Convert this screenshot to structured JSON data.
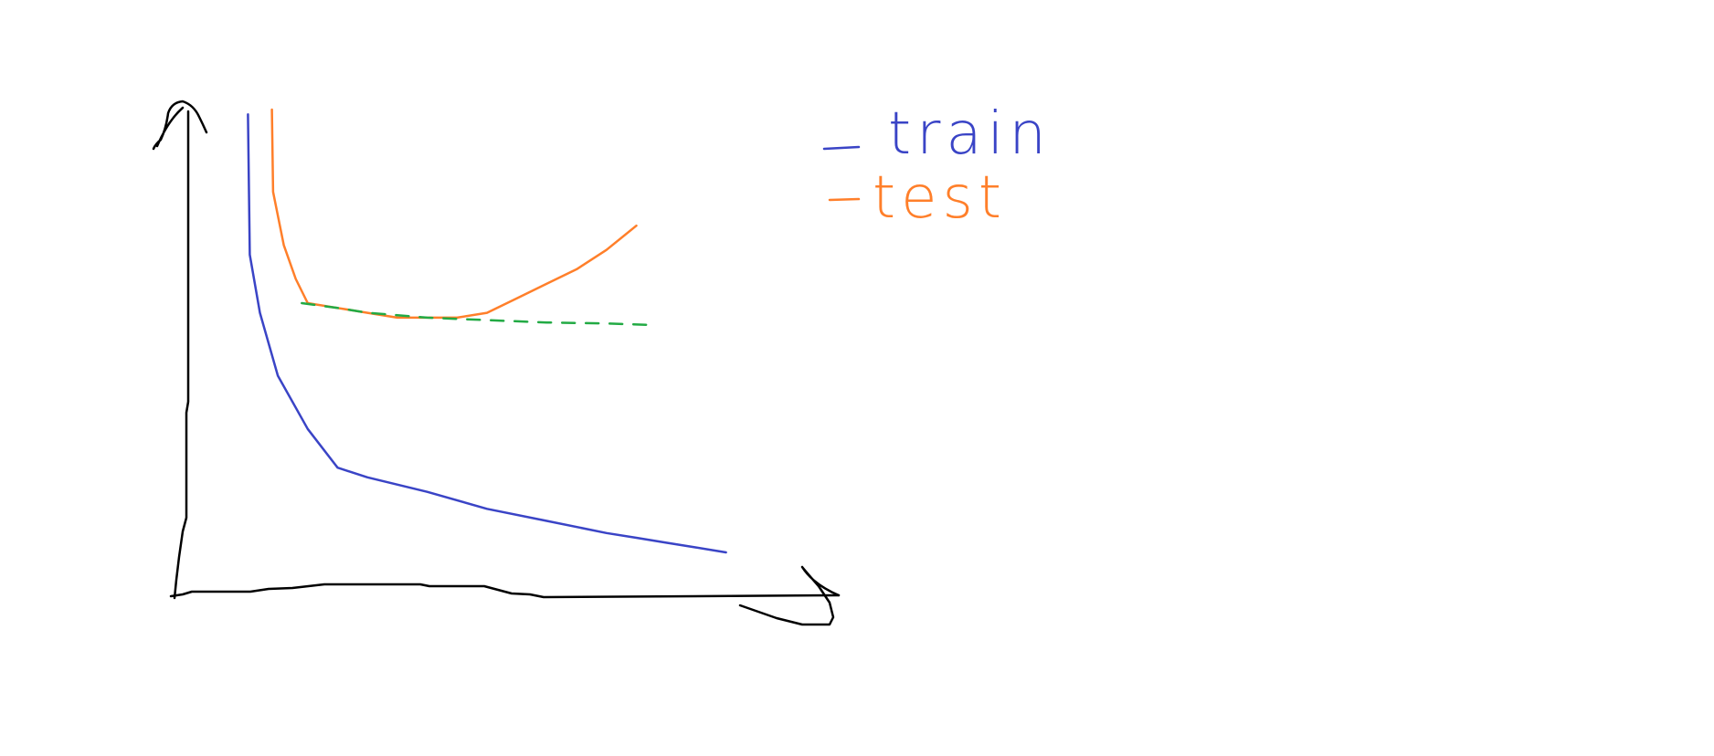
{
  "chart_data": {
    "type": "line",
    "title": "",
    "xlabel": "",
    "ylabel": "",
    "grid": false,
    "legend_position": "top-right",
    "xlim": [
      0,
      100
    ],
    "ylim": [
      0,
      100
    ],
    "colors": {
      "axes": "#000000",
      "train": "#3a44c6",
      "test": "#ff7f2a",
      "reference": "#22aa44"
    },
    "series": [
      {
        "name": "train",
        "color": "#3a44c6",
        "style": "solid",
        "x": [
          10,
          10.3,
          12,
          15,
          20,
          25,
          30,
          40,
          50,
          60,
          70,
          75,
          80,
          85,
          90
        ],
        "y": [
          99,
          70,
          58,
          45,
          34,
          26,
          24,
          21,
          17.5,
          15,
          12.5,
          11.5,
          10.5,
          9.5,
          8.5
        ]
      },
      {
        "name": "test",
        "color": "#ff7f2a",
        "style": "solid",
        "x": [
          14,
          14.2,
          16,
          18,
          20,
          25,
          30,
          35,
          40,
          45,
          50,
          55,
          60,
          65,
          70,
          75
        ],
        "y": [
          100,
          83,
          72,
          65,
          60,
          59,
          58,
          57,
          57,
          57,
          58,
          61,
          64,
          67,
          71,
          76
        ]
      },
      {
        "name": "",
        "color": "#22aa44",
        "style": "dashed",
        "x": [
          19,
          25,
          30,
          40,
          50,
          60,
          70,
          77
        ],
        "y": [
          60,
          59,
          58,
          57,
          56.5,
          56,
          55.8,
          55.5
        ]
      }
    ],
    "legend": [
      {
        "label": "train",
        "color": "#3a44c6"
      },
      {
        "label": "test",
        "color": "#ff7f2a"
      }
    ]
  }
}
